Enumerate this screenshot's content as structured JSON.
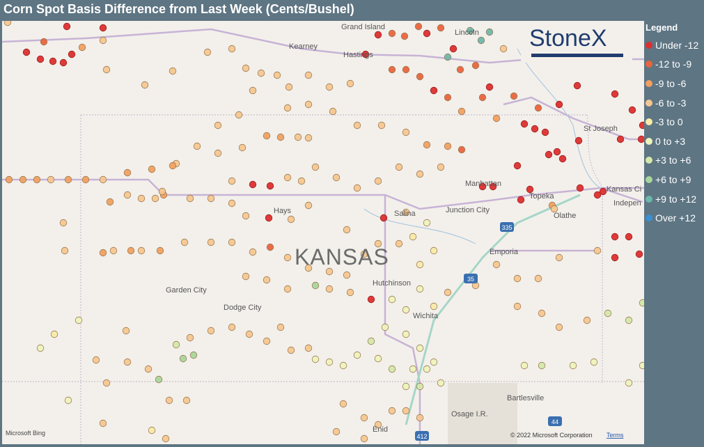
{
  "header": {
    "title": "Corn Spot Basis Difference from Last Week (Cents/Bushel)"
  },
  "legend": {
    "title": "Legend",
    "items": [
      {
        "label": "Under -12",
        "color": "#dc2f2f"
      },
      {
        "label": "-12 to -9",
        "color": "#e8643e"
      },
      {
        "label": "-9 to -6",
        "color": "#f0a060"
      },
      {
        "label": "-6 to -3",
        "color": "#f6c690"
      },
      {
        "label": "-3 to 0",
        "color": "#f8eaa8"
      },
      {
        "label": "0 to +3",
        "color": "#eef2bc"
      },
      {
        "label": "+3 to +6",
        "color": "#d4e8aa"
      },
      {
        "label": "+6 to +9",
        "color": "#a9d59c"
      },
      {
        "label": "+9 to +12",
        "color": "#6cb7ab"
      },
      {
        "label": "Over +12",
        "color": "#3b8fd2"
      }
    ]
  },
  "map": {
    "state_label": "KANSAS",
    "logo": "StoneX",
    "labels": [
      "Grand Island",
      "Kearney",
      "Hastings",
      "Lincoln",
      "St Joseph",
      "Manhattan",
      "Topeka",
      "Kansas Ci",
      "Indepen",
      "Hays",
      "Salina",
      "Junction City",
      "Olathe",
      "Emporia",
      "Garden City",
      "Dodge City",
      "Hutchinson",
      "Wichita",
      "Bartlesville",
      "Osage I.R.",
      "Enid"
    ],
    "shields": [
      "335",
      "35",
      "412",
      "44"
    ],
    "attribution": "© 2022 Microsoft Corporation",
    "terms": "Terms",
    "provider": "Microsoft Bing"
  }
}
